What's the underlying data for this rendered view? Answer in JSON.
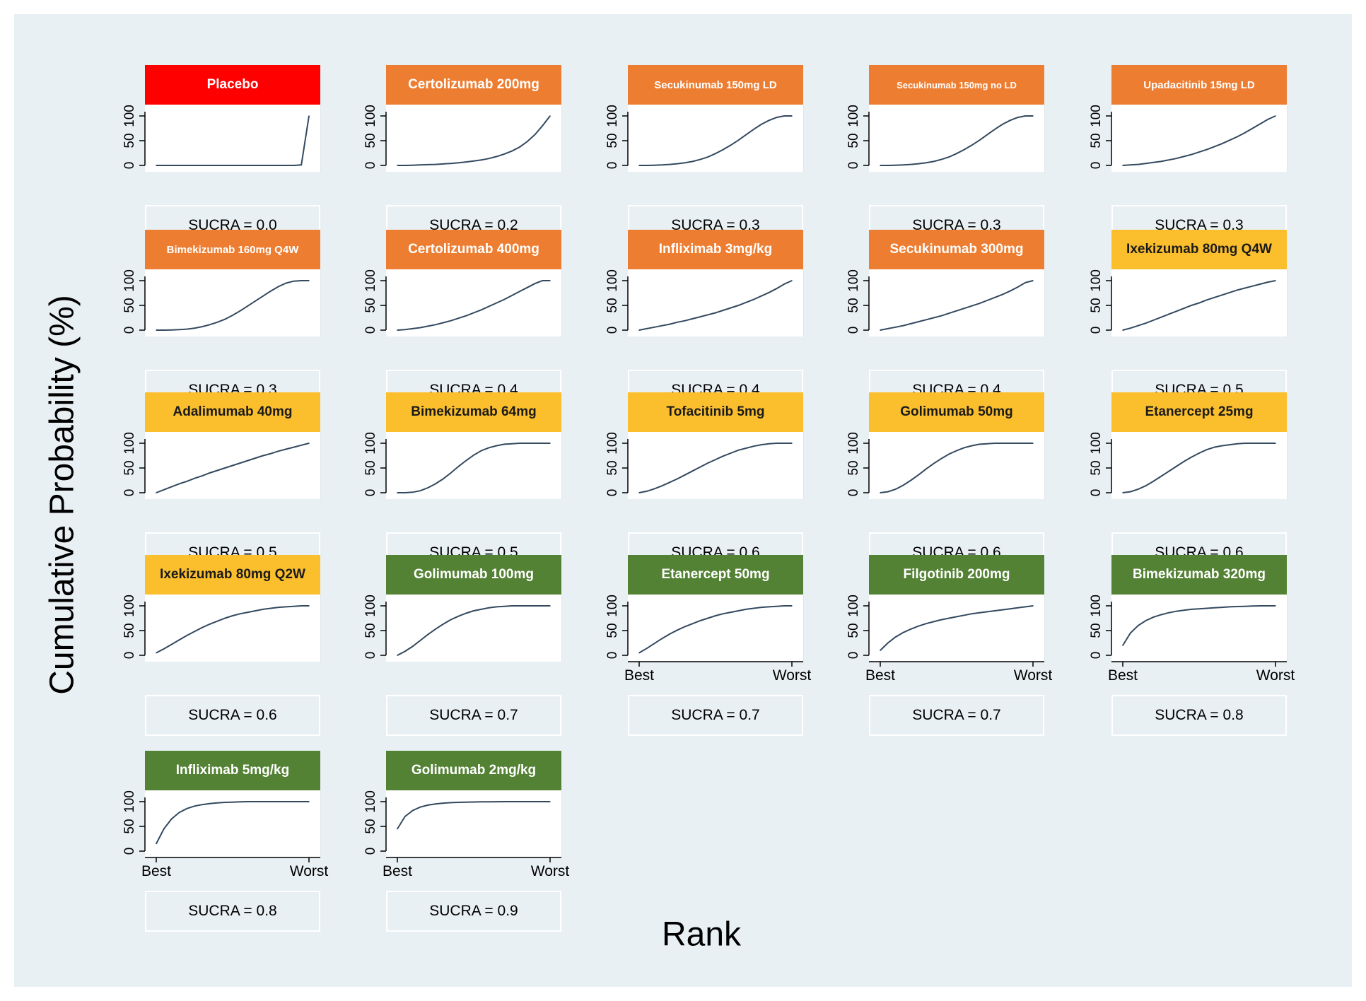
{
  "figure": {
    "ylabel": "Cumulative Probability (%)",
    "xlabel": "Rank"
  },
  "colors": {
    "background": "#e9f0f3",
    "red": "#ff0000",
    "orange": "#ed7d31",
    "yellow": "#fbbf2d",
    "green": "#548235",
    "curve": "#33495f"
  },
  "axis_text": {
    "y_ticks": [
      "0",
      "50",
      "100"
    ],
    "x_best": "Best",
    "x_worst": "Worst"
  },
  "chart_data": [
    {
      "type": "line",
      "title": "Placebo",
      "sucra_label": "SUCRA = 0.0",
      "band": "red",
      "x": [
        1,
        2,
        3,
        4,
        5,
        6,
        7,
        8,
        9,
        10,
        11,
        12,
        13,
        14,
        15,
        16,
        17,
        18,
        19,
        20,
        21
      ],
      "values": [
        0,
        0,
        0,
        0,
        0,
        0,
        0,
        0,
        0,
        0,
        0,
        0,
        0,
        0,
        0,
        0,
        0,
        0,
        0,
        1,
        100
      ],
      "ylim": [
        0,
        100
      ],
      "show_x_labels": false
    },
    {
      "type": "line",
      "title": "Certolizumab 200mg",
      "sucra_label": "SUCRA = 0.2",
      "band": "orange",
      "x": [
        1,
        2,
        3,
        4,
        5,
        6,
        7,
        8,
        9,
        10,
        11,
        12,
        13,
        14,
        15,
        16,
        17,
        18,
        19,
        20,
        21
      ],
      "values": [
        0,
        0,
        0.5,
        1,
        1.5,
        2,
        3,
        4,
        5.5,
        7,
        9,
        11,
        14,
        18,
        23,
        29,
        37,
        48,
        62,
        80,
        100
      ],
      "ylim": [
        0,
        100
      ],
      "show_x_labels": false
    },
    {
      "type": "line",
      "title": "Secukinumab 150mg LD",
      "sucra_label": "SUCRA = 0.3",
      "band": "orange",
      "x": [
        1,
        2,
        3,
        4,
        5,
        6,
        7,
        8,
        9,
        10,
        11,
        12,
        13,
        14,
        15,
        16,
        17,
        18,
        19,
        20,
        21
      ],
      "values": [
        0,
        0,
        0.5,
        1,
        2,
        3.5,
        5.5,
        8,
        12,
        17,
        24,
        32,
        41,
        51,
        62,
        73,
        83,
        91,
        97,
        100,
        100
      ],
      "ylim": [
        0,
        100
      ],
      "show_x_labels": false
    },
    {
      "type": "line",
      "title": "Secukinumab 150mg no LD",
      "sucra_label": "SUCRA = 0.3",
      "band": "orange",
      "x": [
        1,
        2,
        3,
        4,
        5,
        6,
        7,
        8,
        9,
        10,
        11,
        12,
        13,
        14,
        15,
        16,
        17,
        18,
        19,
        20,
        21
      ],
      "values": [
        0,
        0,
        0.5,
        1,
        2,
        3.5,
        5.5,
        8,
        12,
        17,
        24,
        32,
        41,
        51,
        62,
        73,
        83,
        91,
        97,
        100,
        100
      ],
      "ylim": [
        0,
        100
      ],
      "show_x_labels": false
    },
    {
      "type": "line",
      "title": "Upadacitinib 15mg LD",
      "sucra_label": "SUCRA = 0.3",
      "band": "orange",
      "x": [
        1,
        2,
        3,
        4,
        5,
        6,
        7,
        8,
        9,
        10,
        11,
        12,
        13,
        14,
        15,
        16,
        17,
        18,
        19,
        20,
        21
      ],
      "values": [
        0,
        1,
        2,
        4,
        6,
        8,
        11,
        14,
        18,
        22,
        27,
        32,
        38,
        44,
        51,
        58,
        66,
        75,
        84,
        93,
        100
      ],
      "ylim": [
        0,
        100
      ],
      "show_x_labels": false
    },
    {
      "type": "line",
      "title": "Bimekizumab 160mg Q4W",
      "sucra_label": "SUCRA = 0.3",
      "band": "orange",
      "x": [
        1,
        2,
        3,
        4,
        5,
        6,
        7,
        8,
        9,
        10,
        11,
        12,
        13,
        14,
        15,
        16,
        17,
        18,
        19,
        20,
        21
      ],
      "values": [
        0,
        0,
        0.5,
        1,
        2,
        4,
        7,
        11,
        16,
        22,
        30,
        39,
        49,
        59,
        69,
        79,
        88,
        95,
        99,
        100,
        100
      ],
      "ylim": [
        0,
        100
      ],
      "show_x_labels": false
    },
    {
      "type": "line",
      "title": "Certolizumab 400mg",
      "sucra_label": "SUCRA = 0.4",
      "band": "orange",
      "x": [
        1,
        2,
        3,
        4,
        5,
        6,
        7,
        8,
        9,
        10,
        11,
        12,
        13,
        14,
        15,
        16,
        17,
        18,
        19,
        20,
        21
      ],
      "values": [
        0,
        1,
        3,
        5,
        8,
        11,
        15,
        19,
        24,
        29,
        35,
        41,
        48,
        55,
        62,
        70,
        78,
        86,
        94,
        100,
        100
      ],
      "ylim": [
        0,
        100
      ],
      "show_x_labels": false
    },
    {
      "type": "line",
      "title": "Infliximab 3mg/kg",
      "sucra_label": "SUCRA = 0.4",
      "band": "orange",
      "x": [
        1,
        2,
        3,
        4,
        5,
        6,
        7,
        8,
        9,
        10,
        11,
        12,
        13,
        14,
        15,
        16,
        17,
        18,
        19,
        20,
        21
      ],
      "values": [
        0,
        3,
        6,
        9,
        12,
        16,
        19,
        23,
        27,
        31,
        35,
        40,
        45,
        50,
        56,
        62,
        69,
        76,
        84,
        93,
        100
      ],
      "ylim": [
        0,
        100
      ],
      "show_x_labels": false
    },
    {
      "type": "line",
      "title": "Secukinumab 300mg",
      "sucra_label": "SUCRA = 0.4",
      "band": "orange",
      "x": [
        1,
        2,
        3,
        4,
        5,
        6,
        7,
        8,
        9,
        10,
        11,
        12,
        13,
        14,
        15,
        16,
        17,
        18,
        19,
        20,
        21
      ],
      "values": [
        0,
        3,
        6,
        9,
        13,
        17,
        21,
        25,
        29,
        34,
        39,
        44,
        49,
        54,
        60,
        66,
        72,
        79,
        87,
        96,
        100
      ],
      "ylim": [
        0,
        100
      ],
      "show_x_labels": false
    },
    {
      "type": "line",
      "title": "Ixekizumab 80mg Q4W",
      "sucra_label": "SUCRA = 0.5",
      "band": "yellow",
      "x": [
        1,
        2,
        3,
        4,
        5,
        6,
        7,
        8,
        9,
        10,
        11,
        12,
        13,
        14,
        15,
        16,
        17,
        18,
        19,
        20,
        21
      ],
      "values": [
        0,
        4,
        9,
        14,
        20,
        26,
        32,
        38,
        44,
        50,
        55,
        61,
        66,
        71,
        76,
        81,
        85,
        89,
        93,
        97,
        100
      ],
      "ylim": [
        0,
        100
      ],
      "show_x_labels": false
    },
    {
      "type": "line",
      "title": "Adalimumab 40mg",
      "sucra_label": "SUCRA = 0.5",
      "band": "yellow",
      "x": [
        1,
        2,
        3,
        4,
        5,
        6,
        7,
        8,
        9,
        10,
        11,
        12,
        13,
        14,
        15,
        16,
        17,
        18,
        19,
        20,
        21
      ],
      "values": [
        0,
        6,
        12,
        18,
        23,
        29,
        34,
        40,
        45,
        50,
        55,
        60,
        65,
        70,
        75,
        79,
        84,
        88,
        92,
        96,
        100
      ],
      "ylim": [
        0,
        100
      ],
      "show_x_labels": false
    },
    {
      "type": "line",
      "title": "Bimekizumab 64mg",
      "sucra_label": "SUCRA = 0.5",
      "band": "yellow",
      "x": [
        1,
        2,
        3,
        4,
        5,
        6,
        7,
        8,
        9,
        10,
        11,
        12,
        13,
        14,
        15,
        16,
        17,
        18,
        19,
        20,
        21
      ],
      "values": [
        0,
        0,
        1,
        4,
        10,
        18,
        28,
        40,
        53,
        65,
        76,
        85,
        91,
        95,
        98,
        99,
        100,
        100,
        100,
        100,
        100
      ],
      "ylim": [
        0,
        100
      ],
      "show_x_labels": false
    },
    {
      "type": "line",
      "title": "Tofacitinib 5mg",
      "sucra_label": "SUCRA = 0.6",
      "band": "yellow",
      "x": [
        1,
        2,
        3,
        4,
        5,
        6,
        7,
        8,
        9,
        10,
        11,
        12,
        13,
        14,
        15,
        16,
        17,
        18,
        19,
        20,
        21
      ],
      "values": [
        0,
        3,
        8,
        14,
        21,
        28,
        36,
        44,
        52,
        60,
        67,
        74,
        80,
        86,
        90,
        94,
        97,
        99,
        100,
        100,
        100
      ],
      "ylim": [
        0,
        100
      ],
      "show_x_labels": false
    },
    {
      "type": "line",
      "title": "Golimumab 50mg",
      "sucra_label": "SUCRA = 0.6",
      "band": "yellow",
      "x": [
        1,
        2,
        3,
        4,
        5,
        6,
        7,
        8,
        9,
        10,
        11,
        12,
        13,
        14,
        15,
        16,
        17,
        18,
        19,
        20,
        21
      ],
      "values": [
        0,
        2,
        7,
        15,
        25,
        36,
        48,
        59,
        69,
        78,
        85,
        91,
        95,
        98,
        99,
        100,
        100,
        100,
        100,
        100,
        100
      ],
      "ylim": [
        0,
        100
      ],
      "show_x_labels": false
    },
    {
      "type": "line",
      "title": "Etanercept 25mg",
      "sucra_label": "SUCRA = 0.6",
      "band": "yellow",
      "x": [
        1,
        2,
        3,
        4,
        5,
        6,
        7,
        8,
        9,
        10,
        11,
        12,
        13,
        14,
        15,
        16,
        17,
        18,
        19,
        20,
        21
      ],
      "values": [
        0,
        2,
        7,
        14,
        23,
        33,
        43,
        53,
        63,
        72,
        80,
        87,
        92,
        95,
        97,
        99,
        100,
        100,
        100,
        100,
        100
      ],
      "ylim": [
        0,
        100
      ],
      "show_x_labels": false
    },
    {
      "type": "line",
      "title": "Ixekizumab 80mg Q2W",
      "sucra_label": "SUCRA = 0.6",
      "band": "yellow",
      "x": [
        1,
        2,
        3,
        4,
        5,
        6,
        7,
        8,
        9,
        10,
        11,
        12,
        13,
        14,
        15,
        16,
        17,
        18,
        19,
        20,
        21
      ],
      "values": [
        5,
        13,
        22,
        31,
        40,
        48,
        56,
        63,
        69,
        75,
        80,
        84,
        87,
        90,
        93,
        95,
        97,
        98,
        99,
        100,
        100
      ],
      "ylim": [
        0,
        100
      ],
      "show_x_labels": false
    },
    {
      "type": "line",
      "title": "Golimumab 100mg",
      "sucra_label": "SUCRA = 0.7",
      "band": "green",
      "x": [
        1,
        2,
        3,
        4,
        5,
        6,
        7,
        8,
        9,
        10,
        11,
        12,
        13,
        14,
        15,
        16,
        17,
        18,
        19,
        20,
        21
      ],
      "values": [
        0,
        8,
        18,
        30,
        42,
        53,
        63,
        72,
        79,
        85,
        90,
        93,
        96,
        98,
        99,
        100,
        100,
        100,
        100,
        100,
        100
      ],
      "ylim": [
        0,
        100
      ],
      "show_x_labels": false
    },
    {
      "type": "line",
      "title": "Etanercept 50mg",
      "sucra_label": "SUCRA = 0.7",
      "band": "green",
      "x": [
        1,
        2,
        3,
        4,
        5,
        6,
        7,
        8,
        9,
        10,
        11,
        12,
        13,
        14,
        15,
        16,
        17,
        18,
        19,
        20,
        21
      ],
      "values": [
        5,
        14,
        24,
        34,
        43,
        51,
        58,
        64,
        70,
        75,
        80,
        84,
        87,
        90,
        93,
        95,
        97,
        98,
        99,
        100,
        100
      ],
      "ylim": [
        0,
        100
      ],
      "show_x_labels": true
    },
    {
      "type": "line",
      "title": "Filgotinib 200mg",
      "sucra_label": "SUCRA = 0.7",
      "band": "green",
      "x": [
        1,
        2,
        3,
        4,
        5,
        6,
        7,
        8,
        9,
        10,
        11,
        12,
        13,
        14,
        15,
        16,
        17,
        18,
        19,
        20,
        21
      ],
      "values": [
        10,
        25,
        37,
        46,
        53,
        59,
        64,
        68,
        72,
        75,
        78,
        81,
        84,
        86,
        88,
        90,
        92,
        94,
        96,
        98,
        100
      ],
      "ylim": [
        0,
        100
      ],
      "show_x_labels": true
    },
    {
      "type": "line",
      "title": "Bimekizumab 320mg",
      "sucra_label": "SUCRA = 0.8",
      "band": "green",
      "x": [
        1,
        2,
        3,
        4,
        5,
        6,
        7,
        8,
        9,
        10,
        11,
        12,
        13,
        14,
        15,
        16,
        17,
        18,
        19,
        20,
        21
      ],
      "values": [
        20,
        45,
        60,
        70,
        77,
        82,
        86,
        89,
        91,
        93,
        94,
        95,
        96,
        97,
        98,
        98.5,
        99,
        99.5,
        100,
        100,
        100
      ],
      "ylim": [
        0,
        100
      ],
      "show_x_labels": true
    },
    {
      "type": "line",
      "title": "Infliximab 5mg/kg",
      "sucra_label": "SUCRA = 0.8",
      "band": "green",
      "x": [
        1,
        2,
        3,
        4,
        5,
        6,
        7,
        8,
        9,
        10,
        11,
        12,
        13,
        14,
        15,
        16,
        17,
        18,
        19,
        20,
        21
      ],
      "values": [
        15,
        45,
        65,
        78,
        86,
        91,
        94,
        96,
        97.5,
        98.5,
        99,
        99.5,
        100,
        100,
        100,
        100,
        100,
        100,
        100,
        100,
        100
      ],
      "ylim": [
        0,
        100
      ],
      "show_x_labels": true
    },
    {
      "type": "line",
      "title": "Golimumab 2mg/kg",
      "sucra_label": "SUCRA = 0.9",
      "band": "green",
      "x": [
        1,
        2,
        3,
        4,
        5,
        6,
        7,
        8,
        9,
        10,
        11,
        12,
        13,
        14,
        15,
        16,
        17,
        18,
        19,
        20,
        21
      ],
      "values": [
        45,
        70,
        82,
        89,
        93,
        95.5,
        97,
        98,
        98.5,
        99,
        99.3,
        99.5,
        99.7,
        99.8,
        100,
        100,
        100,
        100,
        100,
        100,
        100
      ],
      "ylim": [
        0,
        100
      ],
      "show_x_labels": true
    }
  ]
}
